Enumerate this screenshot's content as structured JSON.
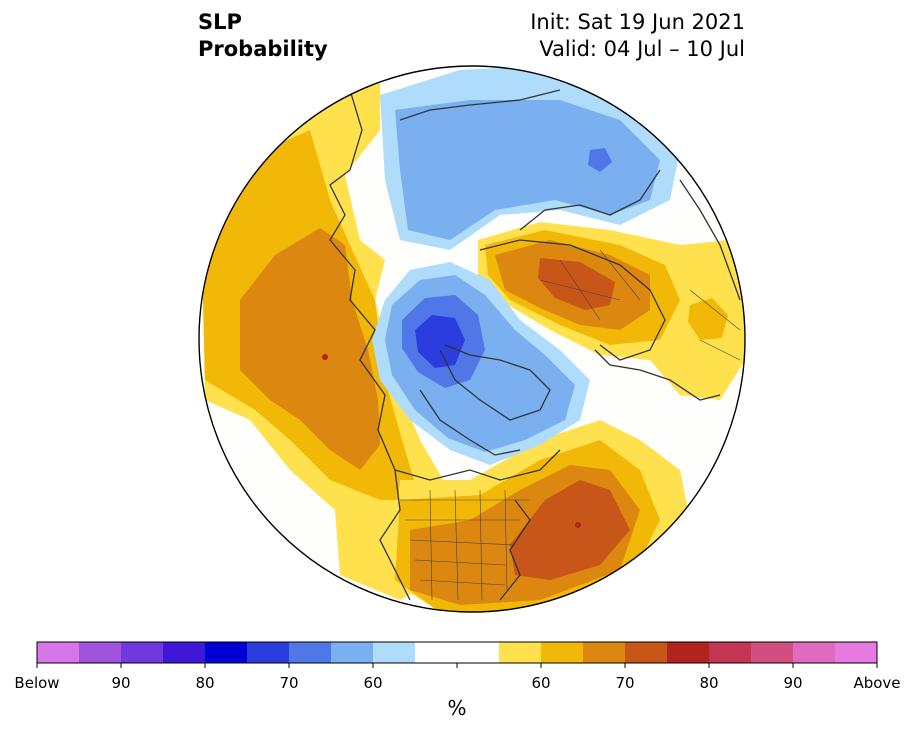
{
  "header": {
    "variable": "SLP",
    "product": "Probability",
    "init": "Init: Sat 19 Jun 2021",
    "valid": "Valid: 04 Jul – 10 Jul"
  },
  "colorbar": {
    "units": "%",
    "colors": [
      "#d676e8",
      "#a054de",
      "#7038de",
      "#3f17d6",
      "#0000d4",
      "#2b3ddc",
      "#4f77e8",
      "#7aaff0",
      "#aedcfa",
      "#ffffff",
      "#ffffff",
      "#ffe14d",
      "#f2b807",
      "#dc8710",
      "#c85618",
      "#b0231f",
      "#c43553",
      "#d14f80",
      "#e06ac0",
      "#e67ae0"
    ],
    "labels": [
      "Below",
      "90",
      "80",
      "70",
      "60",
      "60",
      "70",
      "80",
      "90",
      "Above"
    ]
  },
  "map": {
    "projection": "north-polar-stereographic",
    "region": "Northern Hemisphere",
    "colors": {
      "above_light": "#ffe14d",
      "above_60": "#f2b807",
      "above_70": "#dc8710",
      "above_75": "#c85618",
      "above_80": "#b0231f",
      "below_light": "#aedcfa",
      "below_60": "#7aaff0",
      "below_70": "#4f77e8",
      "below_75": "#2b3ddc",
      "neutral": "#fefefc",
      "coast": "#333333"
    }
  }
}
